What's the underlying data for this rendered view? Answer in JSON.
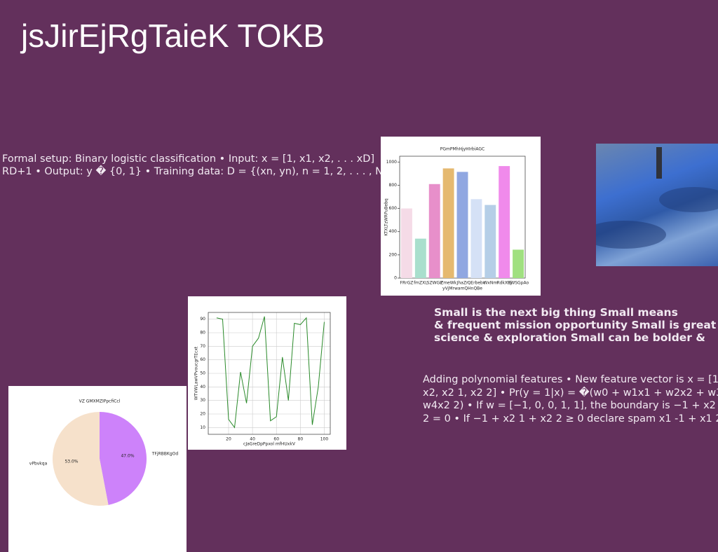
{
  "title": "jsJirEjRgTaieK TOKB",
  "text_blocks": {
    "setup": [
      "Formal setup: Binary logistic classification • Input: x = [1, x1, x2, . . . xD]",
      "RD+1 • Output: y � {0, 1} • Training data: D = {(xn, yn), n = 1, 2, . . . , N} •"
    ],
    "highlight": [
      "Small is the next big thing Small means",
      "& frequent mission opportunity Small is great",
      "science & exploration Small can be bolder &"
    ],
    "features": [
      "Adding polynomial features • New feature vector is x = [1,",
      "x2, x2 1, x2 2] • Pr(y = 1|x) = �(w0 + w1x1 + w2x2 + w3x2 1 +",
      "w4x2 2) • If w = [−1, 0, 0, 1, 1], the boundary is −1 + x2 1 +",
      "2 = 0 • If −1 + x2 1 + x2 2 ≥ 0 declare spam x1 -1 + x1 2 +"
    ]
  },
  "chart_data": [
    {
      "type": "bar",
      "title": "PGmPMhHjyHIrbiAGC",
      "x_label": "yVjMrwamQHnQBe",
      "y_label": "KTXLTzWRPuBebq",
      "categories": [
        "FRrGZ",
        "fmZXL",
        "SZWGP",
        "ZmeWk",
        "JhaZr",
        "QErbebc",
        "WxNm",
        "RdkXRj",
        "UWSGpAo"
      ],
      "values": [
        600,
        340,
        810,
        945,
        915,
        680,
        630,
        965,
        245
      ],
      "colors": [
        "#f5dbe7",
        "#a9dfcd",
        "#e78fca",
        "#e5b970",
        "#90a7e1",
        "#d5e1f6",
        "#b5cee7",
        "#f08aeb",
        "#a0e080"
      ],
      "ylim": [
        0,
        1050
      ],
      "yticks": [
        0,
        200,
        400,
        600,
        800,
        1000
      ]
    },
    {
      "type": "line",
      "x_label": "cJaGreDpPpxol mfHUxkV",
      "y_label": "WTVWLawVPvoucgrTEcxt",
      "x": [
        10,
        15,
        20,
        25,
        30,
        35,
        40,
        45,
        50,
        55,
        60,
        65,
        70,
        75,
        80,
        85,
        90,
        95,
        100
      ],
      "series": [
        {
          "color": "#2a8a2a",
          "values": [
            91,
            90,
            16,
            10,
            51,
            28,
            70,
            76,
            92,
            15,
            18,
            62,
            30,
            87,
            86,
            91,
            12,
            40,
            88
          ]
        }
      ],
      "xlim": [
        3,
        105
      ],
      "ylim": [
        5,
        95
      ],
      "xticks": [
        20,
        40,
        60,
        80,
        100
      ],
      "yticks": [
        10,
        20,
        30,
        40,
        50,
        60,
        70,
        80,
        90
      ],
      "grid": true
    },
    {
      "type": "pie",
      "title": "VZ GMXMZIPpcfiCcl",
      "categories": [
        "TFjRBBKgOd",
        "vPbvkqa"
      ],
      "values": [
        47,
        53
      ],
      "value_labels": [
        "47.0%",
        "53.0%"
      ],
      "colors": [
        "#cd82fa",
        "#f6e1cb"
      ]
    }
  ]
}
